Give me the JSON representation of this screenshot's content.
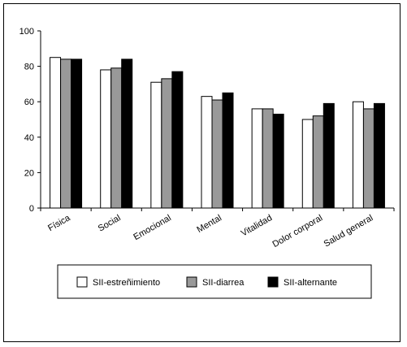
{
  "chart_data": {
    "type": "bar",
    "categories": [
      "Física",
      "Social",
      "Emocional",
      "Mental",
      "Vitalidad",
      "Dolor corporal",
      "Salud general"
    ],
    "series": [
      {
        "name": "SII-estreñimiento",
        "color": "#ffffff",
        "values": [
          85,
          78,
          71,
          63,
          56,
          50,
          60
        ]
      },
      {
        "name": "SII-diarrea",
        "color": "#999999",
        "values": [
          84,
          79,
          73,
          61,
          56,
          52,
          56
        ]
      },
      {
        "name": "SII-alternante",
        "color": "#000000",
        "values": [
          84,
          84,
          77,
          65,
          53,
          59,
          59
        ]
      }
    ],
    "ylim": [
      0,
      100
    ],
    "yticks": [
      0,
      20,
      40,
      60,
      80,
      100
    ],
    "grid": false,
    "legend_position": "bottom",
    "title": "",
    "xlabel": "",
    "ylabel": ""
  }
}
